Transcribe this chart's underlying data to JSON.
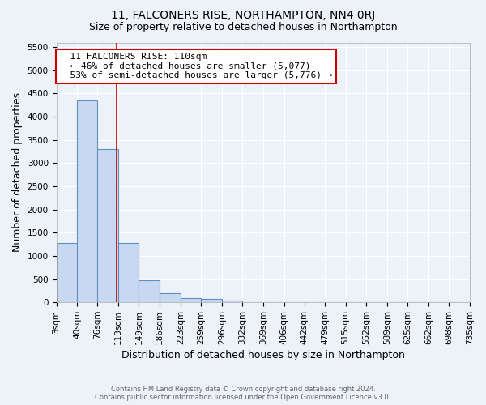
{
  "title": "11, FALCONERS RISE, NORTHAMPTON, NN4 0RJ",
  "subtitle": "Size of property relative to detached houses in Northampton",
  "xlabel": "Distribution of detached houses by size in Northampton",
  "ylabel": "Number of detached properties",
  "footer_line1": "Contains HM Land Registry data © Crown copyright and database right 2024.",
  "footer_line2": "Contains public sector information licensed under the Open Government Licence v3.0.",
  "bin_edges": [
    3,
    40,
    76,
    113,
    149,
    186,
    223,
    259,
    296,
    332,
    369,
    406,
    442,
    479,
    515,
    552,
    589,
    625,
    662,
    698,
    735
  ],
  "bar_heights": [
    1270,
    4350,
    3300,
    1270,
    480,
    200,
    90,
    75,
    40,
    0,
    0,
    0,
    0,
    0,
    0,
    0,
    0,
    0,
    0,
    0
  ],
  "bar_color": "#c8d8f0",
  "bar_edge_color": "#6090c0",
  "property_line_x": 110,
  "property_line_color": "#cc0000",
  "ylim": [
    0,
    5600
  ],
  "yticks": [
    0,
    500,
    1000,
    1500,
    2000,
    2500,
    3000,
    3500,
    4000,
    4500,
    5000,
    5500
  ],
  "annotation_title": "11 FALCONERS RISE: 110sqm",
  "annotation_line1": "← 46% of detached houses are smaller (5,077)",
  "annotation_line2": "53% of semi-detached houses are larger (5,776) →",
  "annotation_box_color": "#ffffff",
  "annotation_box_edge_color": "#cc0000",
  "bg_color": "#edf2f9",
  "grid_color": "#ffffff",
  "title_fontsize": 10,
  "subtitle_fontsize": 9,
  "tick_label_fontsize": 7.5,
  "axis_label_fontsize": 9,
  "annotation_fontsize": 8
}
